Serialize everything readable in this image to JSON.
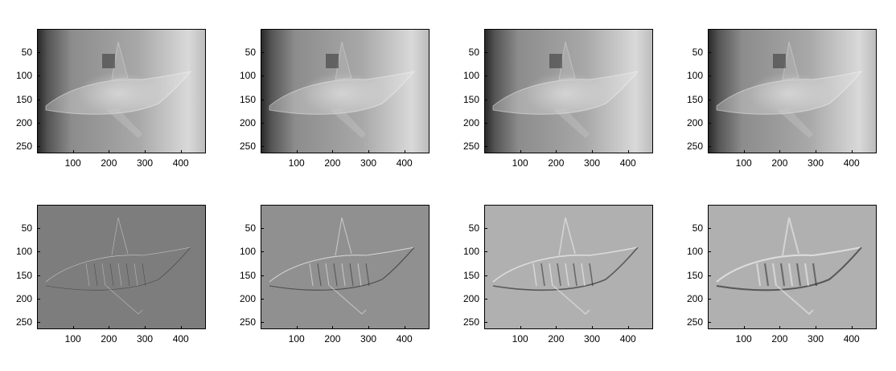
{
  "figure": {
    "rows": [
      {
        "type": "reconstruction",
        "panels": [
          {
            "id": "r1c1"
          },
          {
            "id": "r1c2"
          },
          {
            "id": "r1c3"
          },
          {
            "id": "r1c4"
          }
        ]
      },
      {
        "type": "detail",
        "panels": [
          {
            "id": "r2c1"
          },
          {
            "id": "r2c2"
          },
          {
            "id": "r2c3"
          },
          {
            "id": "r2c4"
          }
        ]
      }
    ],
    "yticks": [
      "50",
      "100",
      "150",
      "200",
      "250"
    ],
    "xticks": [
      "100",
      "200",
      "300",
      "400"
    ],
    "colors": {
      "top_dark": "#2a2a2a",
      "top_mid": "#8c8c8c",
      "top_light": "#d9d9d9",
      "bottom_gray": "#7d7d7d",
      "bottom_light": "#b0b0b0"
    }
  }
}
